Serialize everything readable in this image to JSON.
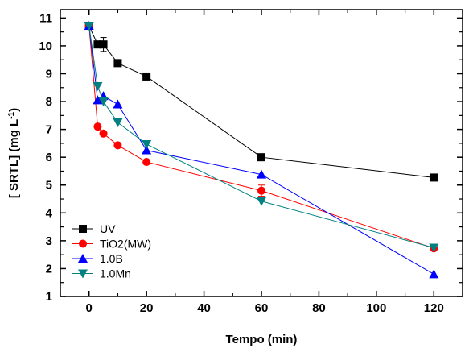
{
  "chart_data": {
    "type": "line",
    "xlabel": "Tempo (min)",
    "ylabel_base": "[ SRTL] (mg L",
    "ylabel_sup": "-1",
    "ylabel_close": ")",
    "xlim": [
      -10,
      130
    ],
    "ylim": [
      1,
      11.3
    ],
    "xticks": [
      0,
      20,
      40,
      60,
      80,
      100,
      120
    ],
    "yticks": [
      1,
      2,
      3,
      4,
      5,
      6,
      7,
      8,
      9,
      10,
      11
    ],
    "legend_position": "bottom-left",
    "series": [
      {
        "name": "UV",
        "color": "#000000",
        "marker": "square",
        "x": [
          0,
          3,
          5,
          10,
          20,
          60,
          120
        ],
        "y": [
          10.72,
          10.05,
          10.05,
          9.38,
          8.9,
          6.0,
          5.27
        ],
        "error": [
          0,
          0,
          0.25,
          0,
          0,
          0,
          0
        ]
      },
      {
        "name": "TiO2(MW)",
        "color": "#ff0000",
        "marker": "circle",
        "x": [
          0,
          3,
          5,
          10,
          20,
          60,
          120
        ],
        "y": [
          10.72,
          7.1,
          6.85,
          6.43,
          5.83,
          4.8,
          2.73
        ],
        "error": [
          0,
          0,
          0,
          0,
          0,
          0.2,
          0
        ]
      },
      {
        "name": "1.0B",
        "color": "#0000ff",
        "marker": "triangle-up",
        "x": [
          0,
          3,
          5,
          10,
          20,
          60,
          120
        ],
        "y": [
          10.72,
          8.05,
          8.2,
          7.9,
          6.25,
          5.38,
          1.8
        ],
        "error": [
          0,
          0,
          0,
          0,
          0,
          0,
          0
        ]
      },
      {
        "name": "1.0Mn",
        "color": "#008080",
        "marker": "triangle-down",
        "x": [
          0,
          3,
          5,
          10,
          20,
          60,
          120
        ],
        "y": [
          10.72,
          8.55,
          8.0,
          7.25,
          6.47,
          4.42,
          2.75
        ],
        "error": [
          0,
          0,
          0,
          0,
          0,
          0,
          0
        ]
      }
    ]
  }
}
